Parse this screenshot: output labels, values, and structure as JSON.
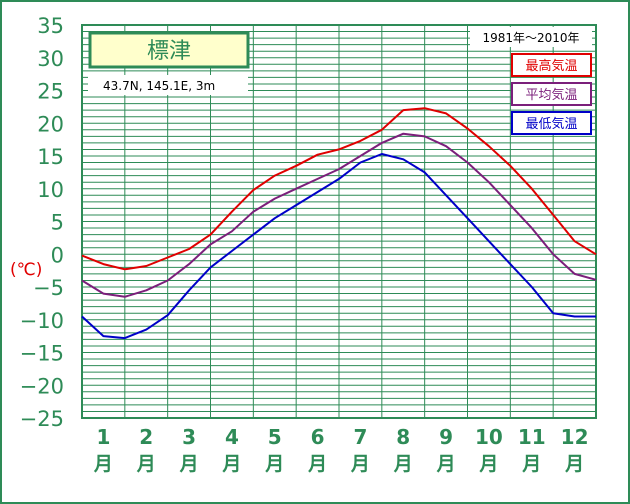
{
  "station": {
    "name": "標津",
    "coords": "43.7N,  145.1E,  3m"
  },
  "period": "1981年～2010年",
  "unit_label": "(℃)",
  "colors": {
    "frame": "#2e8b57",
    "grid": "#2e8b57",
    "max": "#e00000",
    "avg": "#7b1f7b",
    "min": "#0000c8",
    "station_bg": "#ffffcc"
  },
  "chart_data": {
    "type": "line",
    "title": "標津",
    "subtitle": "43.7N,  145.1E,  3m",
    "ylabel": "(℃)",
    "xlabel": "",
    "ylim": [
      -25,
      35
    ],
    "yticks": [
      35,
      30,
      25,
      20,
      15,
      10,
      5,
      0,
      -5,
      -10,
      -15,
      -20,
      -25
    ],
    "xlim": [
      0,
      12
    ],
    "month_labels": [
      "1",
      "2",
      "3",
      "4",
      "5",
      "6",
      "7",
      "8",
      "9",
      "10",
      "11",
      "12"
    ],
    "month_suffix": "月",
    "grid": true,
    "legend_position": "top-right",
    "series": [
      {
        "name": "最高気温",
        "color": "#e00000",
        "x": [
          0,
          0.5,
          1,
          1.5,
          2,
          2.5,
          3,
          3.5,
          4,
          4.5,
          5,
          5.5,
          6,
          6.5,
          7,
          7.5,
          8,
          8.5,
          9,
          9.5,
          10,
          10.5,
          11,
          11.5,
          12
        ],
        "values": [
          -0.2,
          -1.5,
          -2.3,
          -1.8,
          -0.5,
          0.8,
          3.0,
          6.5,
          9.8,
          12.0,
          13.5,
          15.2,
          16.0,
          17.3,
          19.0,
          22.0,
          22.3,
          21.5,
          19.2,
          16.5,
          13.5,
          10.0,
          6.0,
          2.0,
          0.0
        ]
      },
      {
        "name": "平均気温",
        "color": "#7b1f7b",
        "x": [
          0,
          0.5,
          1,
          1.5,
          2,
          2.5,
          3,
          3.5,
          4,
          4.5,
          5,
          5.5,
          6,
          6.5,
          7,
          7.5,
          8,
          8.5,
          9,
          9.5,
          10,
          10.5,
          11,
          11.5,
          12
        ],
        "values": [
          -4.0,
          -6.0,
          -6.5,
          -5.5,
          -4.0,
          -1.5,
          1.5,
          3.5,
          6.5,
          8.5,
          10.0,
          11.5,
          13.0,
          15.0,
          17.0,
          18.4,
          18.0,
          16.5,
          14.0,
          11.0,
          7.5,
          4.0,
          0.0,
          -3.0,
          -3.9
        ]
      },
      {
        "name": "最低気温",
        "color": "#0000c8",
        "x": [
          0,
          0.5,
          1,
          1.5,
          2,
          2.5,
          3,
          3.5,
          4,
          4.5,
          5,
          5.5,
          6,
          6.5,
          7,
          7.5,
          8,
          8.5,
          9,
          9.5,
          10,
          10.5,
          11,
          11.5,
          12
        ],
        "values": [
          -9.5,
          -12.5,
          -12.8,
          -11.5,
          -9.3,
          -5.5,
          -2.0,
          0.5,
          3.0,
          5.5,
          7.5,
          9.5,
          11.5,
          14.0,
          15.3,
          14.5,
          12.5,
          9.0,
          5.5,
          2.0,
          -1.5,
          -5.0,
          -9.0,
          -9.5,
          -9.5
        ]
      }
    ]
  }
}
